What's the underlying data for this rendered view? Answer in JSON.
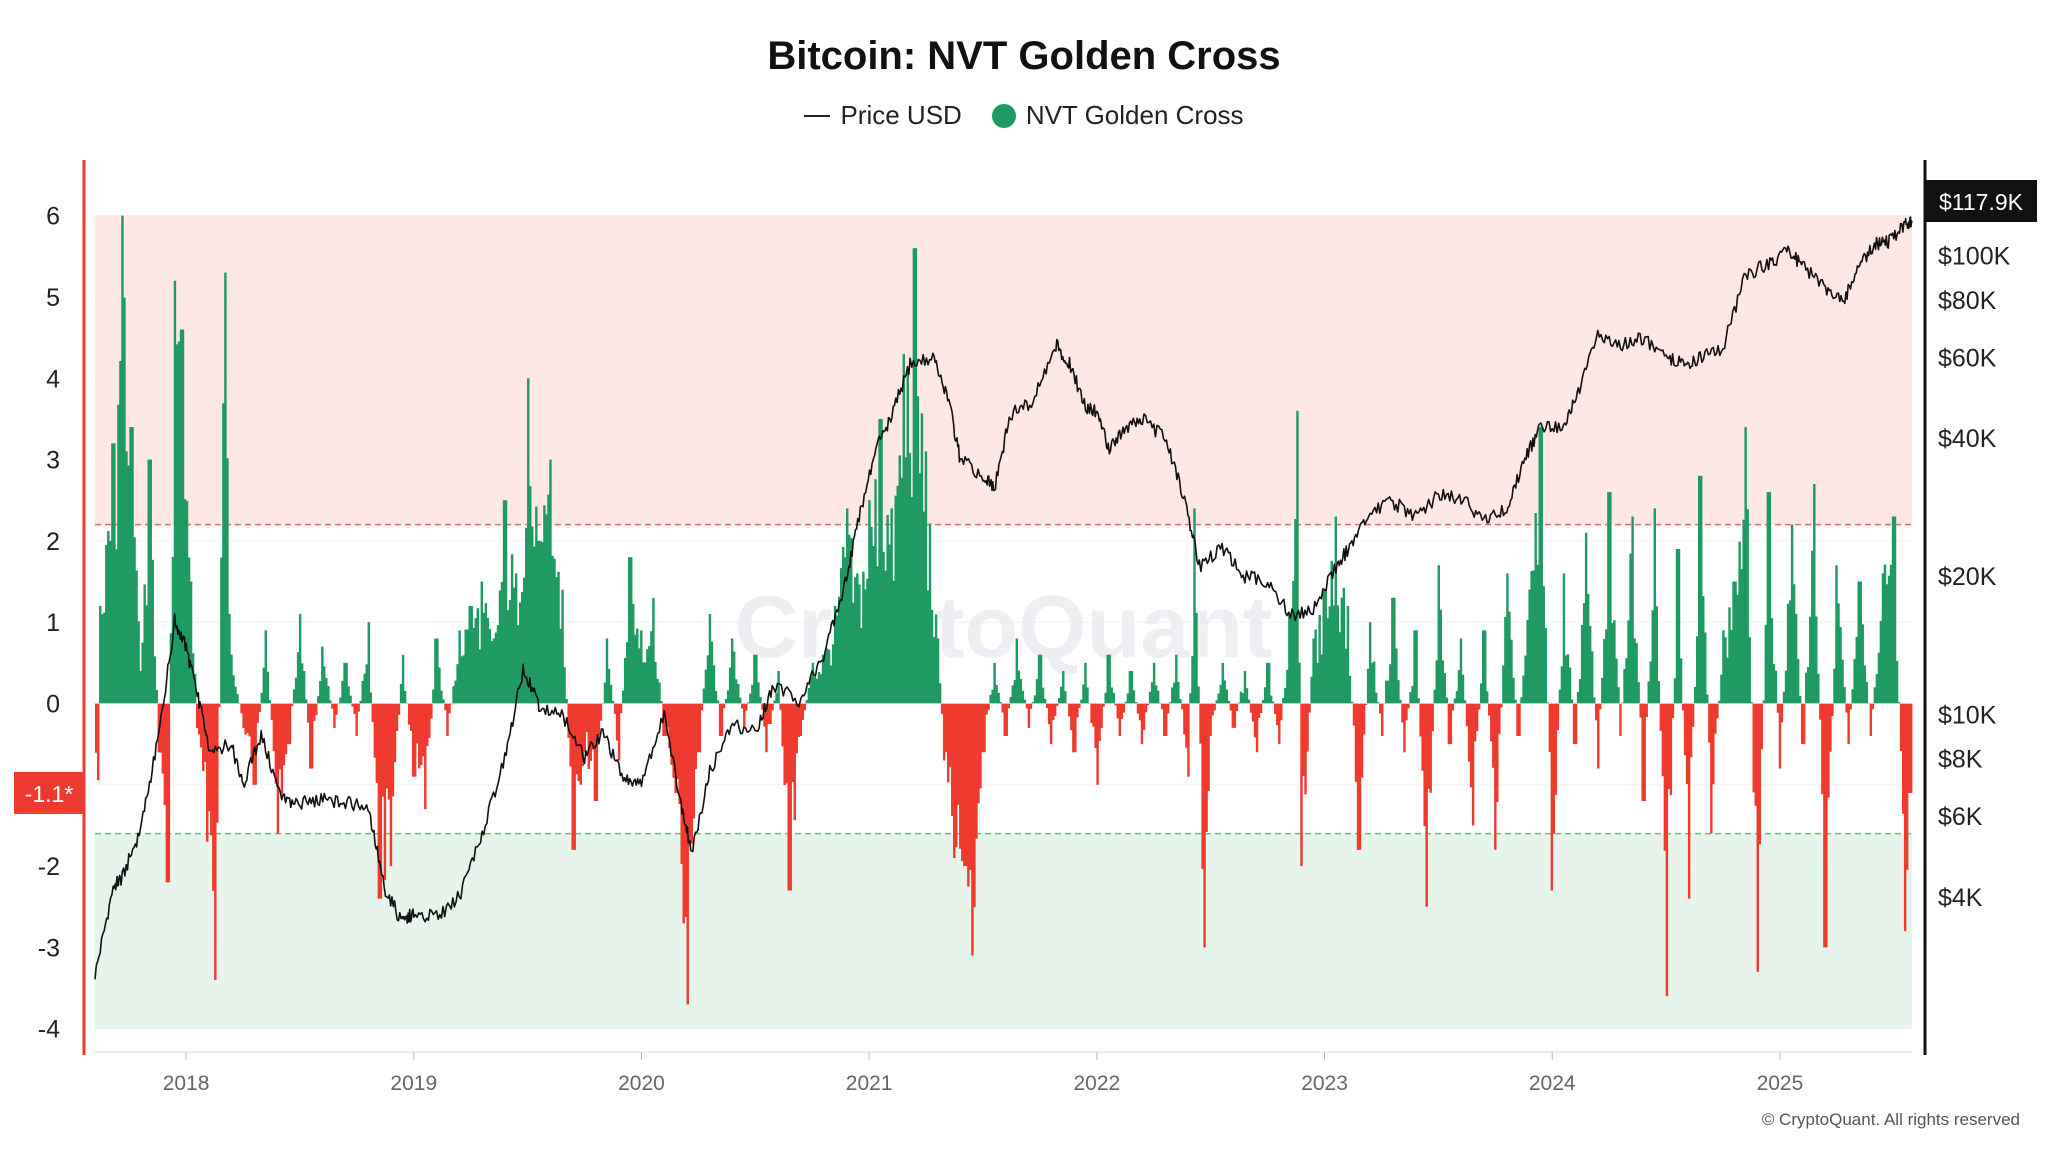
{
  "header": {
    "title": "Bitcoin: NVT Golden Cross",
    "legend_price": "Price USD",
    "legend_nvt": "NVT Golden Cross"
  },
  "footer": {
    "copyright": "© CryptoQuant. All rights reserved"
  },
  "watermark": "CryptoQuant",
  "colors": {
    "positive": "#1e9a62",
    "negative": "#ee3a2f",
    "upper_zone": "#fde8e6",
    "lower_zone": "#e6f4ec",
    "upper_line": "#e07070",
    "lower_line": "#6cc06c",
    "price": "#111111",
    "left_axis": "#ee3a2f",
    "marker_left_bg": "#ee3a2f",
    "marker_right_bg": "#111111"
  },
  "chart_data": {
    "type": "bar+line",
    "title": "Bitcoin: NVT Golden Cross",
    "x_range": [
      2017.6,
      2025.58
    ],
    "x_ticks": [
      "2018",
      "2019",
      "2020",
      "2021",
      "2022",
      "2023",
      "2024",
      "2025"
    ],
    "left_axis": {
      "range": [
        -4.2,
        6.5
      ],
      "ticks": [
        "6",
        "5",
        "4",
        "3",
        "2",
        "1",
        "0",
        "-1",
        "-2",
        "-3",
        "-4"
      ]
    },
    "right_axis": {
      "scale": "log",
      "range": [
        1900,
        150000
      ],
      "ticks": [
        "$100K",
        "$80K",
        "$60K",
        "$40K",
        "$20K",
        "$10K",
        "$8K",
        "$6K",
        "$4K"
      ]
    },
    "thresholds": {
      "upper": 2.2,
      "lower": -1.6,
      "zone_top": 6.0,
      "zone_bottom": -4.0
    },
    "current_nvt_label": "-1.1*",
    "current_nvt": -1.1,
    "current_price_label": "$117.9K",
    "current_price": 117900,
    "nvt_golden_cross": [
      [
        2017.62,
        1.2
      ],
      [
        2017.68,
        3.2
      ],
      [
        2017.72,
        6.0
      ],
      [
        2017.76,
        3.4
      ],
      [
        2017.8,
        0.4
      ],
      [
        2017.84,
        3.0
      ],
      [
        2017.88,
        -0.6
      ],
      [
        2017.92,
        -2.2
      ],
      [
        2017.95,
        5.2
      ],
      [
        2017.98,
        4.6
      ],
      [
        2018.02,
        1.5
      ],
      [
        2018.05,
        -0.3
      ],
      [
        2018.09,
        -1.7
      ],
      [
        2018.13,
        -3.4
      ],
      [
        2018.17,
        5.3
      ],
      [
        2018.2,
        0.6
      ],
      [
        2018.25,
        -0.3
      ],
      [
        2018.3,
        -1.0
      ],
      [
        2018.35,
        0.9
      ],
      [
        2018.4,
        -1.6
      ],
      [
        2018.45,
        -0.5
      ],
      [
        2018.5,
        1.1
      ],
      [
        2018.55,
        -0.8
      ],
      [
        2018.6,
        0.7
      ],
      [
        2018.65,
        -0.3
      ],
      [
        2018.7,
        0.5
      ],
      [
        2018.75,
        -0.4
      ],
      [
        2018.8,
        1.0
      ],
      [
        2018.85,
        -2.4
      ],
      [
        2018.9,
        -2.0
      ],
      [
        2018.95,
        0.6
      ],
      [
        2019.0,
        -0.9
      ],
      [
        2019.05,
        -1.3
      ],
      [
        2019.1,
        0.8
      ],
      [
        2019.15,
        -0.4
      ],
      [
        2019.2,
        0.9
      ],
      [
        2019.25,
        1.2
      ],
      [
        2019.3,
        1.5
      ],
      [
        2019.35,
        0.8
      ],
      [
        2019.4,
        2.5
      ],
      [
        2019.45,
        1.6
      ],
      [
        2019.5,
        4.0
      ],
      [
        2019.55,
        2.0
      ],
      [
        2019.6,
        3.0
      ],
      [
        2019.65,
        1.4
      ],
      [
        2019.7,
        -1.8
      ],
      [
        2019.75,
        -0.6
      ],
      [
        2019.8,
        -1.2
      ],
      [
        2019.85,
        0.8
      ],
      [
        2019.9,
        -0.7
      ],
      [
        2019.95,
        1.8
      ],
      [
        2020.0,
        0.9
      ],
      [
        2020.05,
        1.3
      ],
      [
        2020.1,
        -0.4
      ],
      [
        2020.15,
        -1.1
      ],
      [
        2020.2,
        -3.7
      ],
      [
        2020.25,
        -0.6
      ],
      [
        2020.3,
        1.1
      ],
      [
        2020.35,
        -0.4
      ],
      [
        2020.4,
        0.8
      ],
      [
        2020.45,
        -0.3
      ],
      [
        2020.5,
        0.6
      ],
      [
        2020.55,
        -0.6
      ],
      [
        2020.6,
        0.4
      ],
      [
        2020.65,
        -2.3
      ],
      [
        2020.7,
        -0.4
      ],
      [
        2020.75,
        0.5
      ],
      [
        2020.8,
        0.6
      ],
      [
        2020.85,
        1.2
      ],
      [
        2020.9,
        2.4
      ],
      [
        2020.95,
        1.6
      ],
      [
        2021.0,
        2.5
      ],
      [
        2021.05,
        3.5
      ],
      [
        2021.1,
        2.4
      ],
      [
        2021.15,
        4.3
      ],
      [
        2021.2,
        5.6
      ],
      [
        2021.25,
        3.1
      ],
      [
        2021.3,
        0.8
      ],
      [
        2021.33,
        -0.7
      ],
      [
        2021.37,
        -1.9
      ],
      [
        2021.42,
        -2.0
      ],
      [
        2021.45,
        -3.1
      ],
      [
        2021.5,
        -0.6
      ],
      [
        2021.55,
        0.5
      ],
      [
        2021.6,
        -0.4
      ],
      [
        2021.65,
        0.8
      ],
      [
        2021.7,
        -0.3
      ],
      [
        2021.75,
        0.6
      ],
      [
        2021.8,
        -0.5
      ],
      [
        2021.85,
        0.4
      ],
      [
        2021.9,
        -0.6
      ],
      [
        2021.95,
        0.5
      ],
      [
        2022.0,
        -1.0
      ],
      [
        2022.05,
        0.6
      ],
      [
        2022.1,
        -0.4
      ],
      [
        2022.15,
        0.4
      ],
      [
        2022.2,
        -0.5
      ],
      [
        2022.25,
        0.5
      ],
      [
        2022.3,
        -0.4
      ],
      [
        2022.35,
        0.6
      ],
      [
        2022.4,
        -0.9
      ],
      [
        2022.43,
        2.4
      ],
      [
        2022.47,
        -3.0
      ],
      [
        2022.5,
        -0.4
      ],
      [
        2022.55,
        0.5
      ],
      [
        2022.6,
        -0.3
      ],
      [
        2022.65,
        0.4
      ],
      [
        2022.7,
        -0.6
      ],
      [
        2022.75,
        0.5
      ],
      [
        2022.8,
        -0.5
      ],
      [
        2022.85,
        1.1
      ],
      [
        2022.88,
        3.6
      ],
      [
        2022.9,
        -2.0
      ],
      [
        2022.95,
        0.8
      ],
      [
        2023.0,
        1.4
      ],
      [
        2023.05,
        2.3
      ],
      [
        2023.1,
        1.2
      ],
      [
        2023.15,
        -1.8
      ],
      [
        2023.2,
        1.0
      ],
      [
        2023.25,
        -0.4
      ],
      [
        2023.3,
        1.3
      ],
      [
        2023.35,
        -0.6
      ],
      [
        2023.4,
        0.9
      ],
      [
        2023.45,
        -2.5
      ],
      [
        2023.5,
        1.7
      ],
      [
        2023.55,
        -0.5
      ],
      [
        2023.6,
        0.8
      ],
      [
        2023.65,
        -1.5
      ],
      [
        2023.7,
        0.9
      ],
      [
        2023.75,
        -1.8
      ],
      [
        2023.8,
        1.6
      ],
      [
        2023.85,
        -0.4
      ],
      [
        2023.9,
        1.4
      ],
      [
        2023.95,
        3.4
      ],
      [
        2024.0,
        -2.3
      ],
      [
        2024.05,
        1.6
      ],
      [
        2024.1,
        -0.5
      ],
      [
        2024.15,
        2.1
      ],
      [
        2024.2,
        -0.8
      ],
      [
        2024.25,
        2.6
      ],
      [
        2024.3,
        -0.4
      ],
      [
        2024.35,
        2.3
      ],
      [
        2024.4,
        -1.2
      ],
      [
        2024.45,
        2.4
      ],
      [
        2024.5,
        -3.6
      ],
      [
        2024.55,
        1.9
      ],
      [
        2024.6,
        -2.4
      ],
      [
        2024.65,
        2.8
      ],
      [
        2024.7,
        -1.6
      ],
      [
        2024.75,
        0.9
      ],
      [
        2024.8,
        1.5
      ],
      [
        2024.85,
        3.4
      ],
      [
        2024.9,
        -3.3
      ],
      [
        2024.95,
        2.6
      ],
      [
        2025.0,
        -0.8
      ],
      [
        2025.05,
        2.2
      ],
      [
        2025.1,
        -0.5
      ],
      [
        2025.15,
        2.7
      ],
      [
        2025.2,
        -3.0
      ],
      [
        2025.25,
        1.7
      ],
      [
        2025.3,
        -0.5
      ],
      [
        2025.35,
        1.5
      ],
      [
        2025.4,
        -0.4
      ],
      [
        2025.45,
        1.6
      ],
      [
        2025.5,
        2.3
      ],
      [
        2025.55,
        -2.8
      ],
      [
        2025.57,
        -1.1
      ]
    ],
    "price_usd": [
      [
        2017.6,
        2700
      ],
      [
        2017.68,
        4200
      ],
      [
        2017.72,
        4400
      ],
      [
        2017.8,
        5600
      ],
      [
        2017.88,
        9000
      ],
      [
        2017.95,
        16000
      ],
      [
        2018.0,
        14000
      ],
      [
        2018.05,
        11000
      ],
      [
        2018.1,
        8500
      ],
      [
        2018.2,
        8500
      ],
      [
        2018.25,
        7000
      ],
      [
        2018.33,
        9000
      ],
      [
        2018.42,
        6500
      ],
      [
        2018.5,
        6400
      ],
      [
        2018.6,
        6500
      ],
      [
        2018.7,
        6400
      ],
      [
        2018.8,
        6300
      ],
      [
        2018.87,
        4200
      ],
      [
        2018.95,
        3500
      ],
      [
        2019.0,
        3700
      ],
      [
        2019.1,
        3600
      ],
      [
        2019.2,
        4000
      ],
      [
        2019.3,
        5500
      ],
      [
        2019.4,
        8000
      ],
      [
        2019.48,
        12500
      ],
      [
        2019.55,
        10500
      ],
      [
        2019.65,
        10000
      ],
      [
        2019.75,
        8000
      ],
      [
        2019.83,
        9200
      ],
      [
        2019.92,
        7200
      ],
      [
        2020.0,
        7200
      ],
      [
        2020.1,
        10000
      ],
      [
        2020.17,
        6500
      ],
      [
        2020.22,
        5000
      ],
      [
        2020.3,
        7500
      ],
      [
        2020.4,
        9500
      ],
      [
        2020.5,
        9200
      ],
      [
        2020.58,
        11500
      ],
      [
        2020.7,
        10700
      ],
      [
        2020.8,
        13500
      ],
      [
        2020.88,
        18000
      ],
      [
        2020.95,
        26000
      ],
      [
        2021.03,
        38000
      ],
      [
        2021.1,
        45000
      ],
      [
        2021.18,
        58000
      ],
      [
        2021.28,
        60000
      ],
      [
        2021.35,
        48000
      ],
      [
        2021.4,
        36000
      ],
      [
        2021.5,
        33000
      ],
      [
        2021.55,
        31000
      ],
      [
        2021.62,
        45000
      ],
      [
        2021.72,
        48000
      ],
      [
        2021.82,
        64000
      ],
      [
        2021.88,
        58000
      ],
      [
        2021.95,
        47000
      ],
      [
        2022.0,
        46000
      ],
      [
        2022.05,
        38000
      ],
      [
        2022.12,
        42000
      ],
      [
        2022.2,
        44000
      ],
      [
        2022.3,
        40000
      ],
      [
        2022.38,
        30000
      ],
      [
        2022.45,
        21000
      ],
      [
        2022.55,
        23000
      ],
      [
        2022.65,
        20000
      ],
      [
        2022.75,
        19500
      ],
      [
        2022.85,
        16500
      ],
      [
        2022.95,
        16800
      ],
      [
        2023.05,
        21000
      ],
      [
        2023.12,
        23500
      ],
      [
        2023.2,
        27500
      ],
      [
        2023.3,
        29000
      ],
      [
        2023.4,
        27000
      ],
      [
        2023.5,
        30000
      ],
      [
        2023.6,
        29500
      ],
      [
        2023.7,
        26500
      ],
      [
        2023.8,
        28000
      ],
      [
        2023.88,
        36000
      ],
      [
        2023.95,
        42500
      ],
      [
        2024.05,
        42000
      ],
      [
        2024.12,
        51000
      ],
      [
        2024.2,
        68000
      ],
      [
        2024.3,
        64000
      ],
      [
        2024.4,
        66000
      ],
      [
        2024.5,
        60000
      ],
      [
        2024.58,
        58000
      ],
      [
        2024.65,
        60000
      ],
      [
        2024.75,
        63000
      ],
      [
        2024.85,
        91000
      ],
      [
        2024.95,
        96000
      ],
      [
        2025.03,
        102000
      ],
      [
        2025.1,
        96000
      ],
      [
        2025.2,
        84000
      ],
      [
        2025.28,
        80000
      ],
      [
        2025.35,
        95000
      ],
      [
        2025.42,
        106000
      ],
      [
        2025.48,
        107000
      ],
      [
        2025.55,
        118000
      ],
      [
        2025.58,
        117900
      ]
    ]
  }
}
